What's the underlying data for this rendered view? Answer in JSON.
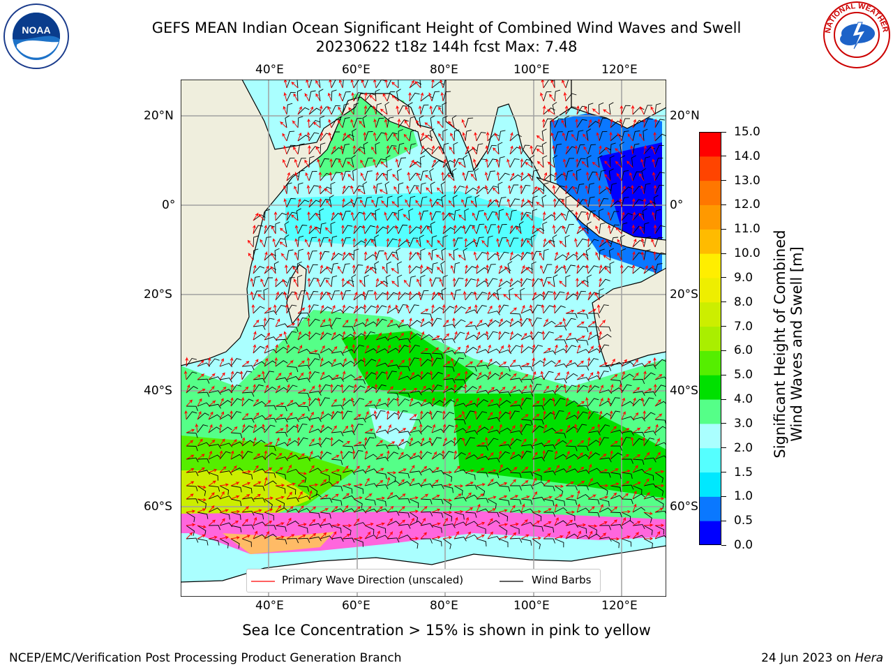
{
  "header": {
    "title_line1": "GEFS MEAN Indian Ocean Significant Height of Combined Wind Waves and Swell",
    "title_line2": "20230622 t18z 144h fcst   Max: 7.48"
  },
  "logos": {
    "left": "noaa-logo",
    "right": "national-weather-service-logo",
    "left_text": "NOAA",
    "right_text": "NATIONAL WEATHER SERVICE"
  },
  "map": {
    "lon_ticks": [
      "40°E",
      "60°E",
      "80°E",
      "100°E",
      "120°E"
    ],
    "lat_ticks": [
      "20°N",
      "0°",
      "20°S",
      "40°S",
      "60°S"
    ],
    "lon_range": [
      20,
      130
    ],
    "lat_range": [
      -70,
      28
    ],
    "land_color": "#efeedd",
    "ocean_low_color": "#aaffff",
    "legend": {
      "wave_label": "Primary Wave Direction (unscaled)",
      "barb_label": "Wind Barbs",
      "wave_color": "#ff0000",
      "barb_color": "#000000"
    },
    "sea_ice_note": "Sea Ice Concentration > 15% is shown in pink to yellow"
  },
  "colorbar": {
    "title_line1": "Significant Height of Combined",
    "title_line2": "Wind Waves and Swell [m]",
    "levels": [
      "0.0",
      "0.5",
      "1.0",
      "1.5",
      "2.0",
      "3.0",
      "4.0",
      "5.0",
      "6.0",
      "7.0",
      "8.0",
      "9.0",
      "10.0",
      "11.0",
      "12.0",
      "13.0",
      "14.0",
      "15.0"
    ],
    "colors": [
      "#0000ff",
      "#0a78ff",
      "#00e8ff",
      "#55ffff",
      "#aaffff",
      "#55ff88",
      "#00e000",
      "#55ee00",
      "#aaee00",
      "#ccee00",
      "#eeee00",
      "#ffee00",
      "#ffbb00",
      "#ff9900",
      "#ff7700",
      "#ff4400",
      "#ff0000"
    ]
  },
  "footer": {
    "left": "NCEP/EMC/Verification Post Processing Product Generation Branch",
    "right_date": "24 Jun 2023 on ",
    "right_machine": "Hera"
  }
}
